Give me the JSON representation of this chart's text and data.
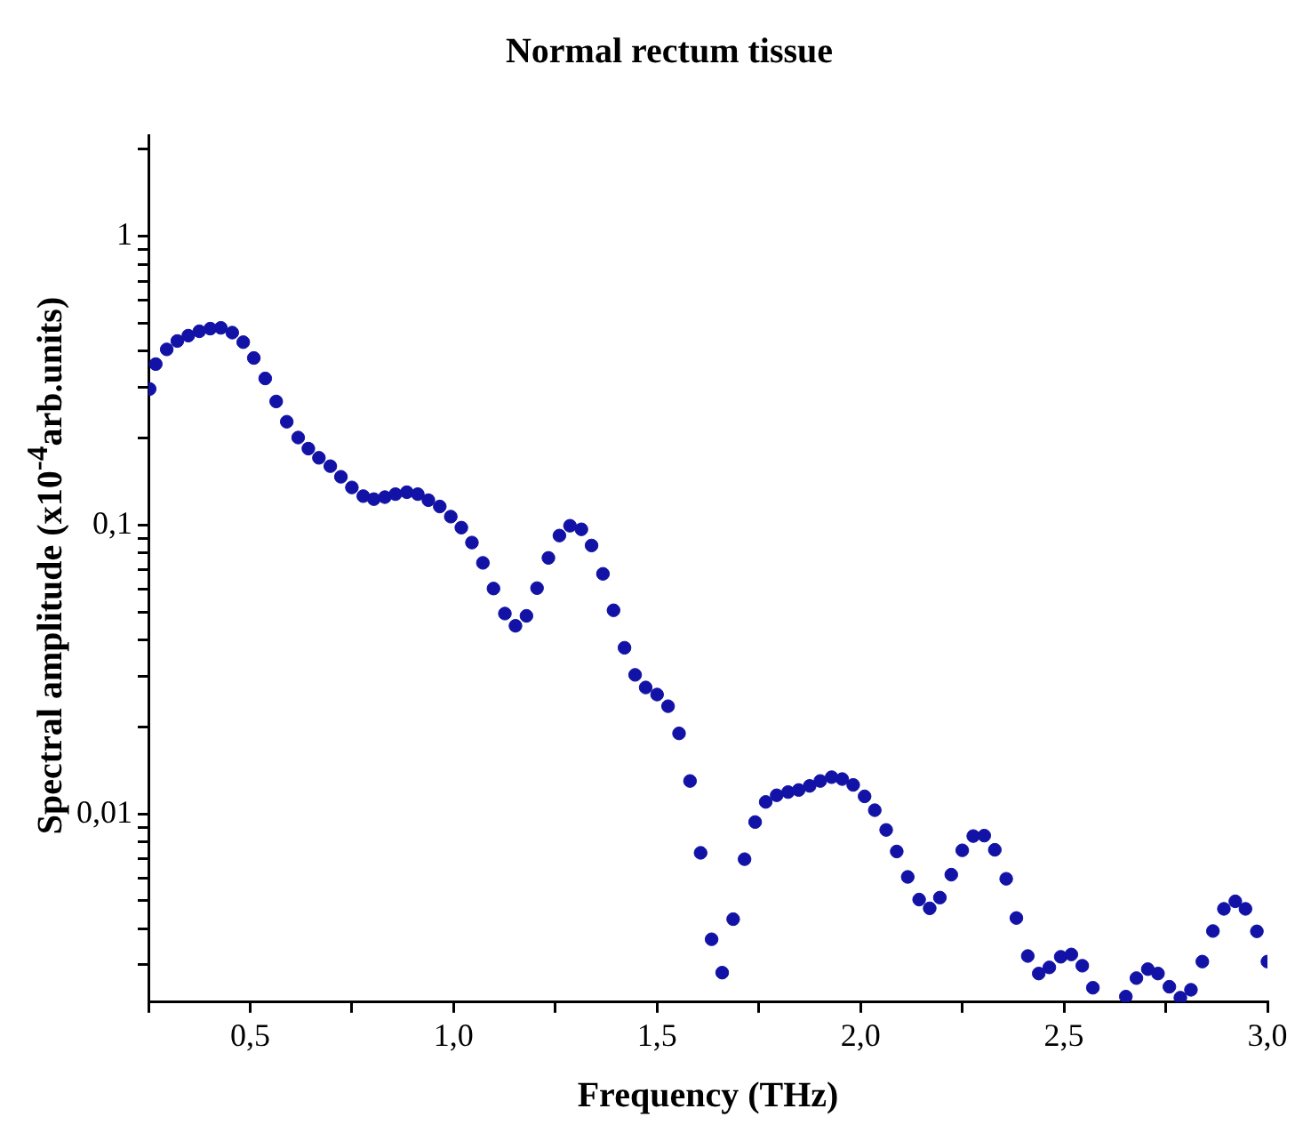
{
  "chart_data": {
    "type": "scatter",
    "title": "Normal rectum tissue",
    "xlabel": "Frequency (THz)",
    "ylabel": "Spectral amplitude (x10$^{-4}$arb.units)",
    "log": "y",
    "grid": false,
    "legend": false,
    "marker": "circle",
    "xlim": [
      0.25,
      3.0
    ],
    "ylim": [
      0.00223,
      2.24
    ],
    "xticks": [
      {
        "value": 0.25,
        "label": null
      },
      {
        "value": 0.5,
        "label": "0,5"
      },
      {
        "value": 0.75,
        "label": null
      },
      {
        "value": 1.0,
        "label": "1,0"
      },
      {
        "value": 1.25,
        "label": null
      },
      {
        "value": 1.5,
        "label": "1,5"
      },
      {
        "value": 1.75,
        "label": null
      },
      {
        "value": 2.0,
        "label": "2,0"
      },
      {
        "value": 2.25,
        "label": null
      },
      {
        "value": 2.5,
        "label": "2,5"
      },
      {
        "value": 2.75,
        "label": null
      },
      {
        "value": 3.0,
        "label": "3,0"
      }
    ],
    "yticks": [
      {
        "value": 0.003,
        "label": null
      },
      {
        "value": 0.004,
        "label": null
      },
      {
        "value": 0.005,
        "label": null
      },
      {
        "value": 0.006,
        "label": null
      },
      {
        "value": 0.007,
        "label": null
      },
      {
        "value": 0.008,
        "label": null
      },
      {
        "value": 0.009,
        "label": null
      },
      {
        "value": 0.01,
        "label": "0,01"
      },
      {
        "value": 0.02,
        "label": null
      },
      {
        "value": 0.03,
        "label": null
      },
      {
        "value": 0.04,
        "label": null
      },
      {
        "value": 0.05,
        "label": null
      },
      {
        "value": 0.06,
        "label": null
      },
      {
        "value": 0.07,
        "label": null
      },
      {
        "value": 0.08,
        "label": null
      },
      {
        "value": 0.09,
        "label": null
      },
      {
        "value": 0.1,
        "label": "0,1"
      },
      {
        "value": 0.2,
        "label": null
      },
      {
        "value": 0.3,
        "label": null
      },
      {
        "value": 0.4,
        "label": null
      },
      {
        "value": 0.5,
        "label": null
      },
      {
        "value": 0.6,
        "label": null
      },
      {
        "value": 0.7,
        "label": null
      },
      {
        "value": 0.8,
        "label": null
      },
      {
        "value": 0.9,
        "label": null
      },
      1,
      {
        "value": 2,
        "label": null
      }
    ],
    "series": [
      {
        "color": "#1212a6",
        "x": [
          0.253,
          0.268,
          0.295,
          0.321,
          0.348,
          0.375,
          0.402,
          0.428,
          0.456,
          0.483,
          0.509,
          0.537,
          0.564,
          0.59,
          0.618,
          0.643,
          0.669,
          0.697,
          0.723,
          0.75,
          0.778,
          0.804,
          0.831,
          0.857,
          0.885,
          0.912,
          0.938,
          0.966,
          0.993,
          1.019,
          1.045,
          1.072,
          1.098,
          1.126,
          1.152,
          1.179,
          1.205,
          1.233,
          1.26,
          1.286,
          1.314,
          1.339,
          1.367,
          1.393,
          1.42,
          1.446,
          1.472,
          1.5,
          1.527,
          1.554,
          1.581,
          1.607,
          1.634,
          1.66,
          1.687,
          1.715,
          1.741,
          1.767,
          1.794,
          1.822,
          1.848,
          1.875,
          1.901,
          1.929,
          1.955,
          1.982,
          2.01,
          2.035,
          2.063,
          2.089,
          2.116,
          2.144,
          2.17,
          2.195,
          2.223,
          2.25,
          2.277,
          2.304,
          2.33,
          2.358,
          2.383,
          2.411,
          2.438,
          2.464,
          2.492,
          2.518,
          2.545,
          2.571,
          2.652,
          2.678,
          2.706,
          2.731,
          2.759,
          2.786,
          2.812,
          2.84,
          2.866,
          2.893,
          2.921,
          2.946,
          2.974,
          3.0
        ],
        "values": [
          0.296,
          0.361,
          0.406,
          0.434,
          0.453,
          0.469,
          0.479,
          0.482,
          0.464,
          0.43,
          0.379,
          0.322,
          0.268,
          0.228,
          0.201,
          0.184,
          0.171,
          0.16,
          0.147,
          0.135,
          0.126,
          0.123,
          0.125,
          0.128,
          0.13,
          0.128,
          0.122,
          0.116,
          0.107,
          0.098,
          0.087,
          0.074,
          0.0603,
          0.0494,
          0.0448,
          0.0485,
          0.0605,
          0.077,
          0.092,
          0.0995,
          0.0967,
          0.085,
          0.0678,
          0.0507,
          0.0376,
          0.0303,
          0.0274,
          0.0259,
          0.0236,
          0.019,
          0.013,
          0.00733,
          0.00368,
          0.00282,
          0.00432,
          0.00697,
          0.00937,
          0.011,
          0.0116,
          0.0119,
          0.0121,
          0.0125,
          0.013,
          0.0134,
          0.0132,
          0.0126,
          0.0115,
          0.0103,
          0.0088,
          0.00741,
          0.00605,
          0.00505,
          0.00471,
          0.00513,
          0.00616,
          0.00748,
          0.00838,
          0.00841,
          0.00751,
          0.00596,
          0.00436,
          0.00322,
          0.0028,
          0.00294,
          0.0032,
          0.00326,
          0.00298,
          0.0025,
          0.00233,
          0.0027,
          0.0029,
          0.0028,
          0.00252,
          0.00231,
          0.00246,
          0.00308,
          0.00393,
          0.00469,
          0.00498,
          0.00469,
          0.00392,
          0.00308
        ]
      }
    ]
  }
}
